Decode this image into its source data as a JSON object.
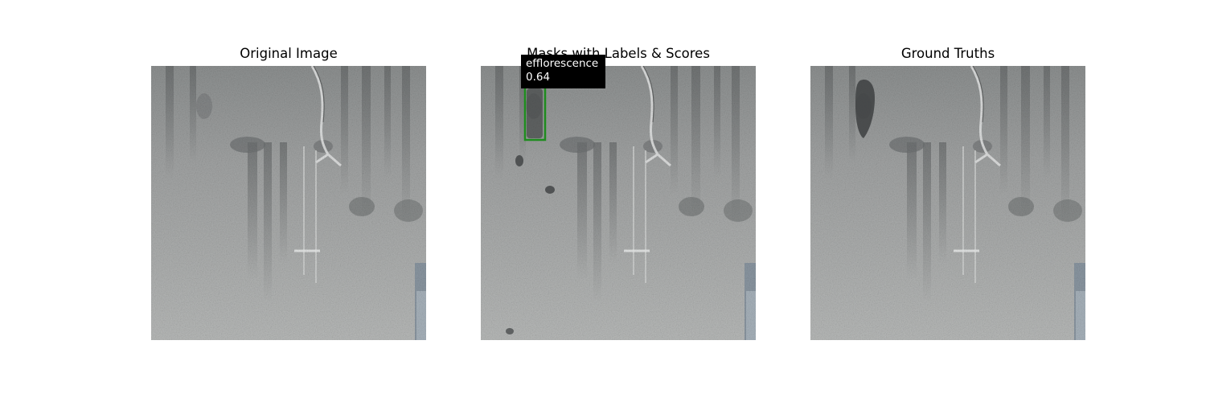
{
  "panels": [
    {
      "title": "Original Image"
    },
    {
      "title": "Masks with Labels & Scores"
    },
    {
      "title": "Ground Truths"
    }
  ],
  "detection": {
    "label": "efflorescence",
    "score": "0.64",
    "box_color": "#1e8c1e"
  },
  "colors": {
    "wall_base": "#a9abab",
    "wall_dark": "#5e6162",
    "mask_dark": "#3d4041"
  }
}
